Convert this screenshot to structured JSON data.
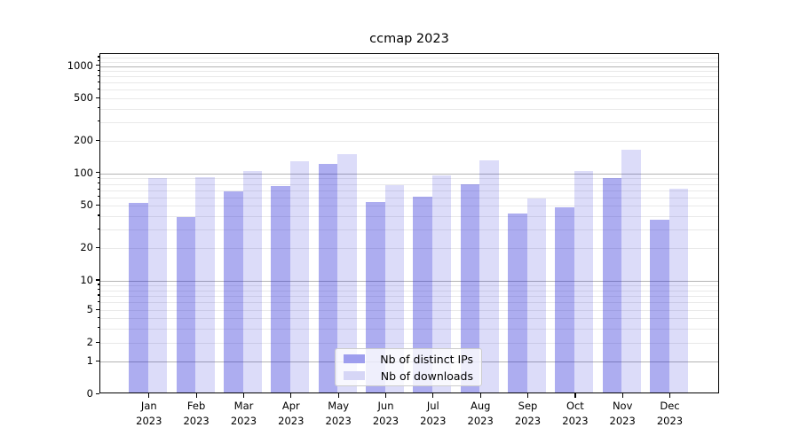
{
  "title": "ccmap 2023",
  "chart_data": {
    "type": "bar",
    "title": "ccmap 2023",
    "categories": [
      "Jan",
      "Feb",
      "Mar",
      "Apr",
      "May",
      "Jun",
      "Jul",
      "Aug",
      "Sep",
      "Oct",
      "Nov",
      "Dec"
    ],
    "category_year": "2023",
    "series": [
      {
        "name": "Nb of distinct IPs",
        "legend_color": "#9e9eee",
        "bar_color": "rgba(32,32,214,0.37)",
        "values": [
          51,
          38,
          66,
          73,
          118,
          52,
          58,
          77,
          41,
          47,
          87,
          36
        ]
      },
      {
        "name": "Nb of downloads",
        "legend_color": "#d6d6f6",
        "bar_color": "rgba(32,32,214,0.155)",
        "values": [
          87,
          88,
          102,
          124,
          146,
          75,
          92,
          128,
          56,
          101,
          160,
          69
        ]
      }
    ],
    "y_ticks": [
      0,
      1,
      2,
      5,
      10,
      20,
      50,
      100,
      200,
      500,
      1000
    ],
    "yscale": "symlog",
    "ylim": [
      0,
      1300
    ],
    "grid": true,
    "legend_position": "lower center",
    "grid_major_values": [
      1,
      10,
      100,
      1000
    ],
    "grid_minor_color": "#e9e9e9",
    "grid_major_color": "#b4b4b4"
  }
}
